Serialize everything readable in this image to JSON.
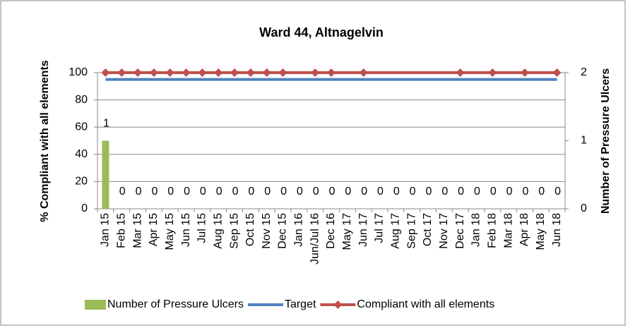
{
  "chart_data": {
    "type": "bar-line",
    "title": "Ward 44, Altnagelvin",
    "y_label": "% Compliant with all elements",
    "y2_label": "Number of Pressure Ulcers",
    "categories": [
      "Jan 15",
      "Feb 15",
      "Mar 15",
      "Apr 15",
      "May 15",
      "Jun 15",
      "Jul 15",
      "Aug 15",
      "Sep 15",
      "Oct 15",
      "Nov 15",
      "Dec 15",
      "Jan 16",
      "Jun/Jul 16",
      "Dec 16",
      "May 17",
      "Jun 17",
      "Jul 17",
      "Aug 17",
      "Sep 17",
      "Oct 17",
      "Nov 17",
      "Dec 17",
      "Jan 18",
      "Feb 18",
      "Mar 18",
      "Apr 18",
      "May 18",
      "Jun 18"
    ],
    "series": [
      {
        "name": "Number of Pressure Ulcers",
        "type": "bar",
        "axis": "y2",
        "color": "#9bbb59",
        "values": [
          1,
          0,
          0,
          0,
          0,
          0,
          0,
          0,
          0,
          0,
          0,
          0,
          0,
          0,
          0,
          0,
          0,
          0,
          0,
          0,
          0,
          0,
          0,
          0,
          0,
          0,
          0,
          0,
          0
        ]
      },
      {
        "name": "Target",
        "type": "line",
        "color": "#4f81bd",
        "values": [
          95,
          95,
          95,
          95,
          95,
          95,
          95,
          95,
          95,
          95,
          95,
          95,
          95,
          95,
          95,
          95,
          95,
          95,
          95,
          95,
          95,
          95,
          95,
          95,
          95,
          95,
          95,
          95,
          95
        ]
      },
      {
        "name": "Compliant with all elements",
        "type": "line",
        "color": "#c0504d",
        "markers": true,
        "values": [
          100,
          100,
          100,
          100,
          100,
          100,
          100,
          100,
          100,
          100,
          100,
          100,
          null,
          100,
          100,
          null,
          100,
          null,
          null,
          null,
          null,
          null,
          100,
          null,
          100,
          null,
          100,
          null,
          100
        ]
      }
    ],
    "connect_gaps": true,
    "ylim": [
      0,
      100
    ],
    "yticks": [
      0,
      20,
      40,
      60,
      80,
      100
    ],
    "y2lim": [
      0,
      2
    ],
    "y2ticks": [
      0,
      1,
      2
    ],
    "grid": true,
    "legend": "bottom"
  }
}
